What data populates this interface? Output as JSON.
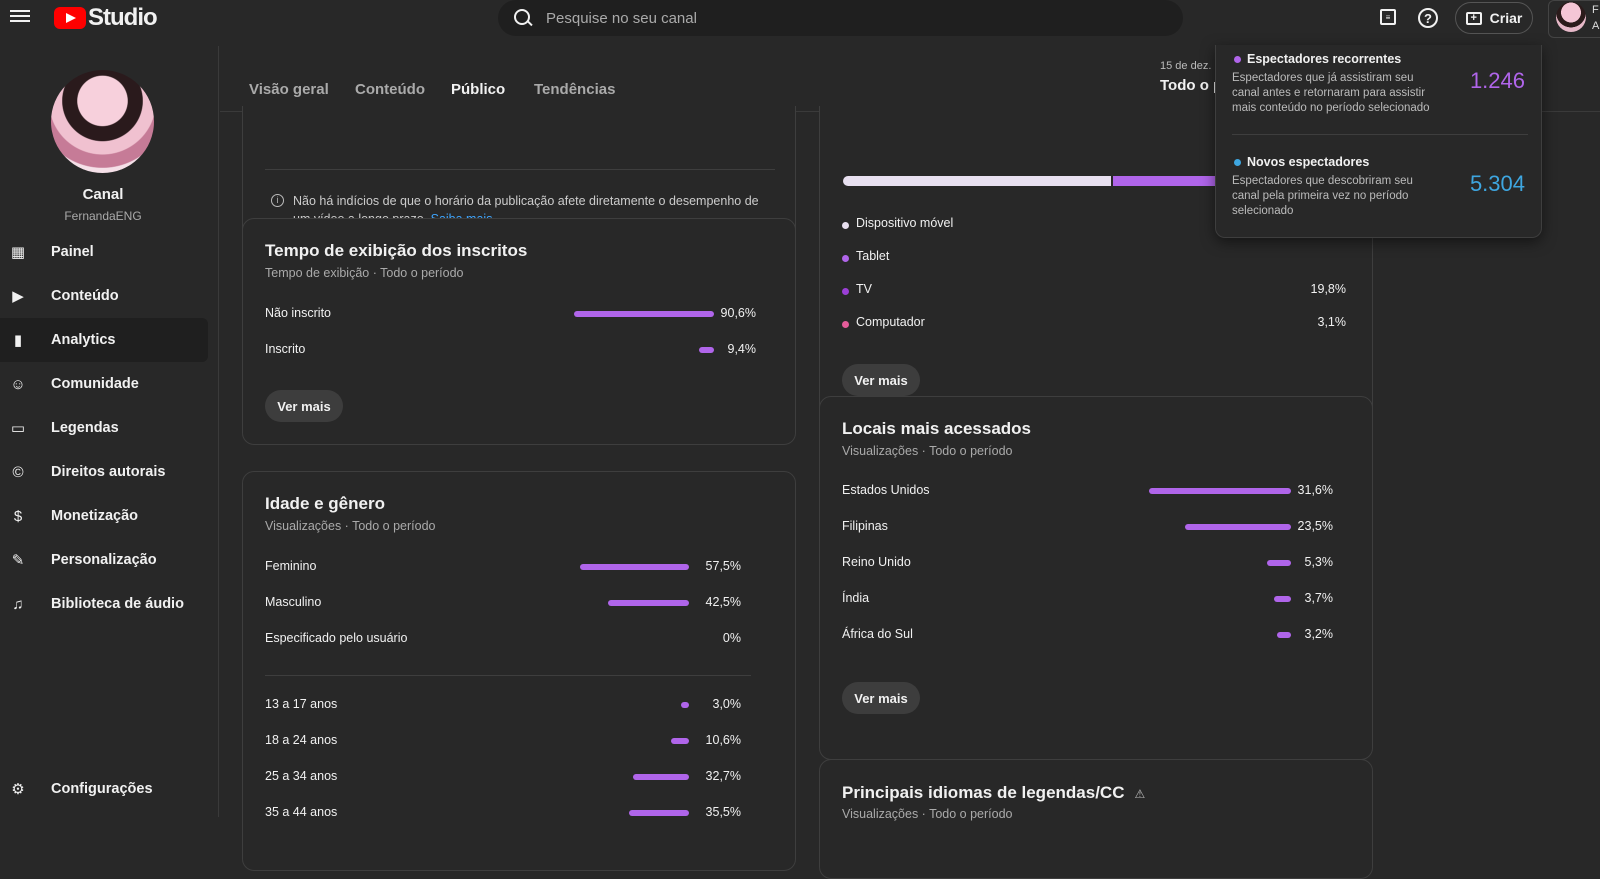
{
  "app": {
    "logo_text": "Studio"
  },
  "search": {
    "placeholder": "Pesquise no seu canal"
  },
  "header": {
    "create_label": "Criar",
    "account_initial": "F",
    "account_sub": "A"
  },
  "channel": {
    "title": "Canal",
    "handle": "FernandaENG"
  },
  "sidebar": {
    "items": [
      {
        "label": "Painel",
        "icon": "dashboard-icon"
      },
      {
        "label": "Conteúdo",
        "icon": "content-icon"
      },
      {
        "label": "Analytics",
        "icon": "analytics-icon"
      },
      {
        "label": "Comunidade",
        "icon": "community-icon"
      },
      {
        "label": "Legendas",
        "icon": "subtitles-icon"
      },
      {
        "label": "Direitos autorais",
        "icon": "copyright-icon"
      },
      {
        "label": "Monetização",
        "icon": "monetization-icon"
      },
      {
        "label": "Personalização",
        "icon": "customization-icon"
      },
      {
        "label": "Biblioteca de áudio",
        "icon": "audio-library-icon"
      }
    ],
    "settings_label": "Configurações"
  },
  "tabs": [
    "Visão geral",
    "Conteúdo",
    "Público",
    "Tendências"
  ],
  "date_range": {
    "line1": "15 de dez.",
    "line2": "Todo o p"
  },
  "info_card": {
    "text": "Não há indícios de que o horário da publicação afete diretamente o desempenho de um vídeo a longo prazo.",
    "link": "Saiba mais"
  },
  "subscriber_watch": {
    "title": "Tempo de exibição dos inscritos",
    "subtitle": "Tempo de exibição · Todo o período",
    "rows": [
      {
        "label": "Não inscrito",
        "value": "90,6%",
        "pct": 90.6
      },
      {
        "label": "Inscrito",
        "value": "9,4%",
        "pct": 9.4
      }
    ],
    "more": "Ver mais"
  },
  "age_gender": {
    "title": "Idade e gênero",
    "subtitle": "Visualizações · Todo o período",
    "gender_rows": [
      {
        "label": "Feminino",
        "value": "57,5%",
        "pct": 57.5
      },
      {
        "label": "Masculino",
        "value": "42,5%",
        "pct": 42.5
      },
      {
        "label": "Especificado pelo usuário",
        "value": "0%",
        "pct": 0
      }
    ],
    "age_rows": [
      {
        "label": "13 a 17 anos",
        "value": "3,0%",
        "pct": 3.0
      },
      {
        "label": "18 a 24 anos",
        "value": "10,6%",
        "pct": 10.6
      },
      {
        "label": "25 a 34 anos",
        "value": "32,7%",
        "pct": 32.7
      },
      {
        "label": "35 a 44 anos",
        "value": "35,5%",
        "pct": 35.5
      }
    ]
  },
  "devices": {
    "rows": [
      {
        "label": "Dispositivo móvel",
        "value": "",
        "color": "#e8e0f0"
      },
      {
        "label": "Tablet",
        "value": "",
        "color": "#b065ea"
      },
      {
        "label": "TV",
        "value": "19,8%",
        "color": "#9b3fd6"
      },
      {
        "label": "Computador",
        "value": "3,1%",
        "color": "#e45c9a"
      }
    ],
    "more": "Ver mais"
  },
  "locations": {
    "title": "Locais mais acessados",
    "subtitle": "Visualizações · Todo o período",
    "rows": [
      {
        "label": "Estados Unidos",
        "value": "31,6%",
        "pct": 31.6
      },
      {
        "label": "Filipinas",
        "value": "23,5%",
        "pct": 23.5
      },
      {
        "label": "Reino Unido",
        "value": "5,3%",
        "pct": 5.3
      },
      {
        "label": "Índia",
        "value": "3,7%",
        "pct": 3.7
      },
      {
        "label": "África do Sul",
        "value": "3,2%",
        "pct": 3.2
      }
    ],
    "more": "Ver mais"
  },
  "languages": {
    "title": "Principais idiomas de legendas/CC",
    "subtitle": "Visualizações · Todo o período"
  },
  "popup": {
    "returning": {
      "title": "Espectadores recorrentes",
      "desc": "Espectadores que já assistiram seu canal antes e retornaram para assistir mais conteúdo no período selecionado",
      "value": "1.246",
      "color": "#b065ea"
    },
    "new": {
      "title": "Novos espectadores",
      "desc": "Espectadores que descobriram seu canal pela primeira vez no período selecionado",
      "value": "5.304",
      "color": "#3ea6e0"
    }
  },
  "colors": {
    "accent_bar": "#b065ea",
    "link": "#3ea6ff",
    "background": "#282828"
  }
}
